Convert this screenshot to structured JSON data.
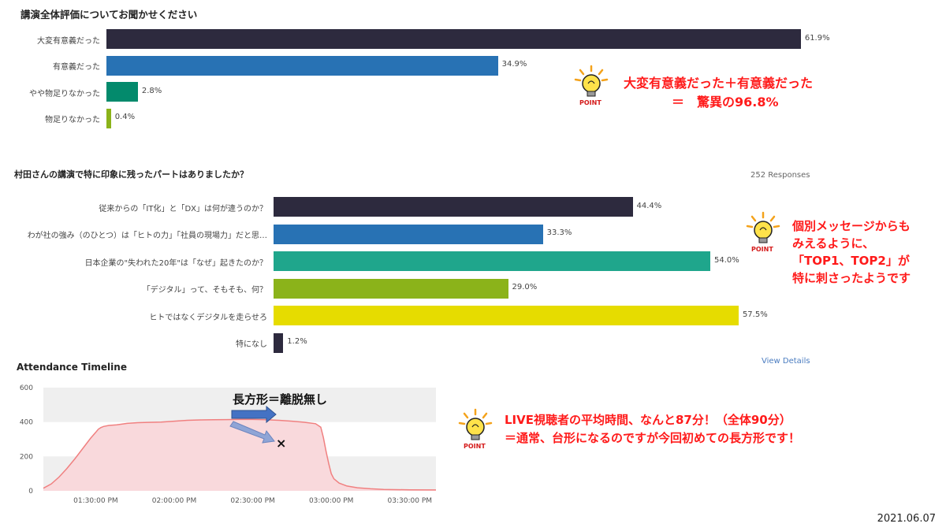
{
  "chart_data": [
    {
      "type": "bar",
      "orientation": "horizontal",
      "title": "講演全体評価についてお聞かせください",
      "categories": [
        "大変有意義だった",
        "有意義だった",
        "やや物足りなかった",
        "物足りなかった"
      ],
      "values": [
        61.9,
        34.9,
        2.8,
        0.4
      ],
      "value_labels": [
        "61.9%",
        "34.9%",
        "2.8%",
        "0.4%"
      ],
      "colors": [
        "#2d2a3e",
        "#2872b4",
        "#038a6c",
        "#8bb31a"
      ],
      "xlim": [
        0,
        100
      ]
    },
    {
      "type": "bar",
      "orientation": "horizontal",
      "title": "村田さんの講演で特に印象に残ったパートはありましたか？",
      "responses": "252 Responses",
      "view_details": "View Details",
      "categories": [
        "従来からの「IT化」と「DX」は何が違うのか？",
        "わが社の強み（のひとつ）は「ヒトの力」「社員の現場力」だと思…",
        "日本企業の\"失われた20年\"は「なぜ」起きたのか？",
        "「デジタル」って、そもそも、何？",
        "ヒトではなくデジタルを走らせろ",
        "特になし"
      ],
      "values": [
        44.4,
        33.3,
        54.0,
        29.0,
        57.5,
        1.2
      ],
      "value_labels": [
        "44.4%",
        "33.3%",
        "54.0%",
        "29.0%",
        "57.5%",
        "1.2%"
      ],
      "colors": [
        "#2d2a3e",
        "#2872b4",
        "#1fa68c",
        "#8bb31a",
        "#e6dc00",
        "#2d2a3e"
      ],
      "xlim": [
        0,
        100
      ]
    },
    {
      "type": "area",
      "title": "Attendance Timeline",
      "y_ticks": [
        "0",
        "200",
        "400",
        "600"
      ],
      "ylim": [
        0,
        600
      ],
      "x_ticks": [
        "01:30:00 PM",
        "02:00:00 PM",
        "02:30:00 PM",
        "03:00:00 PM",
        "03:30:00 PM"
      ],
      "x": [
        "01:10",
        "01:13",
        "01:16",
        "01:19",
        "01:22",
        "01:25",
        "01:28",
        "01:30",
        "01:31",
        "01:32",
        "01:33",
        "01:35",
        "01:38",
        "01:42",
        "01:46",
        "01:50",
        "01:55",
        "02:00",
        "02:05",
        "02:10",
        "02:15",
        "02:20",
        "02:25",
        "02:30",
        "02:35",
        "02:40",
        "02:45",
        "02:50",
        "02:54",
        "02:56",
        "02:57",
        "02:58",
        "02:59",
        "03:00",
        "03:01",
        "03:03",
        "03:06",
        "03:10",
        "03:15",
        "03:20",
        "03:30",
        "03:40"
      ],
      "values": [
        15,
        40,
        80,
        130,
        185,
        245,
        305,
        340,
        358,
        368,
        374,
        380,
        384,
        392,
        396,
        398,
        400,
        405,
        410,
        412,
        413,
        414,
        415,
        415,
        413,
        410,
        405,
        398,
        390,
        370,
        310,
        230,
        160,
        100,
        70,
        45,
        28,
        18,
        12,
        8,
        6,
        5
      ],
      "color": "#f08080",
      "fill": "#f9d9dc"
    }
  ],
  "annotations": {
    "point_label": "POINT",
    "note1_line1": "大変有意義だった＋有意義だった",
    "note1_line2": "＝　驚異の96.8%",
    "note2_line1": "個別メッセージからも",
    "note2_line2": "みえるように、",
    "note2_line3": "「TOP1、TOP2」が",
    "note2_line4": "特に刺さったようです",
    "note3_line1": "LIVE視聴者の平均時間、なんと87分！（全体90分）",
    "note3_line2": "＝通常、台形になるのですが今回初めての長方形です！",
    "rect_label": "長方形＝離脱無し",
    "cross": "×"
  },
  "date": "2021.06.07",
  "colors": {
    "accent_red": "#ff1a1a",
    "bulb_yellow": "#ffe24a",
    "rays_orange": "#f4a21a"
  }
}
